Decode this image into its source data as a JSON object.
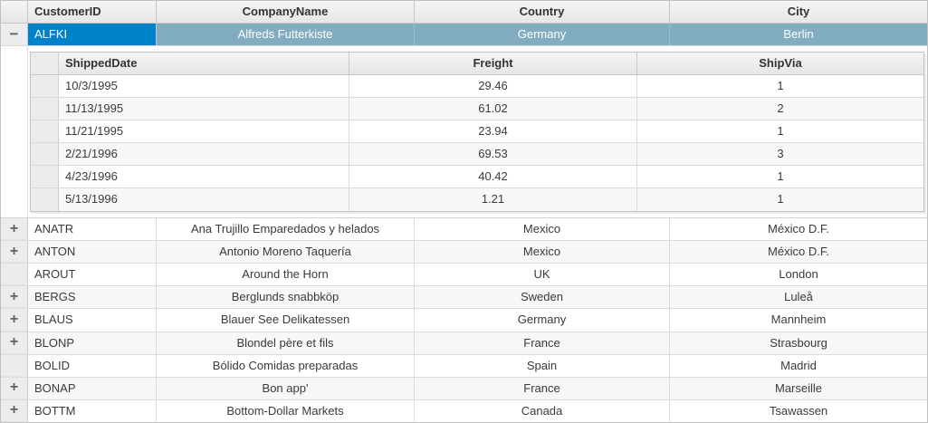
{
  "grid": {
    "columns": [
      "CustomerID",
      "CompanyName",
      "Country",
      "City"
    ],
    "detail_columns": [
      "ShippedDate",
      "Freight",
      "ShipVia"
    ],
    "rows": [
      {
        "customer_id": "ALFKI",
        "company_name": "Alfreds Futterkiste",
        "country": "Germany",
        "city": "Berlin",
        "expander": "−",
        "selected": true,
        "orders": [
          {
            "shipped_date": "10/3/1995",
            "freight": "29.46",
            "ship_via": "1"
          },
          {
            "shipped_date": "11/13/1995",
            "freight": "61.02",
            "ship_via": "2"
          },
          {
            "shipped_date": "11/21/1995",
            "freight": "23.94",
            "ship_via": "1"
          },
          {
            "shipped_date": "2/21/1996",
            "freight": "69.53",
            "ship_via": "3"
          },
          {
            "shipped_date": "4/23/1996",
            "freight": "40.42",
            "ship_via": "1"
          },
          {
            "shipped_date": "5/13/1996",
            "freight": "1.21",
            "ship_via": "1"
          }
        ]
      },
      {
        "customer_id": "ANATR",
        "company_name": "Ana Trujillo Emparedados y helados",
        "country": "Mexico",
        "city": "México D.F.",
        "expander": "+"
      },
      {
        "customer_id": "ANTON",
        "company_name": "Antonio Moreno Taquería",
        "country": "Mexico",
        "city": "México D.F.",
        "expander": "+"
      },
      {
        "customer_id": "AROUT",
        "company_name": "Around the Horn",
        "country": "UK",
        "city": "London",
        "expander": ""
      },
      {
        "customer_id": "BERGS",
        "company_name": "Berglunds snabbköp",
        "country": "Sweden",
        "city": "Luleå",
        "expander": "+"
      },
      {
        "customer_id": "BLAUS",
        "company_name": "Blauer See Delikatessen",
        "country": "Germany",
        "city": "Mannheim",
        "expander": "+"
      },
      {
        "customer_id": "BLONP",
        "company_name": "Blondel père et fils",
        "country": "France",
        "city": "Strasbourg",
        "expander": "+"
      },
      {
        "customer_id": "BOLID",
        "company_name": "Bólido Comidas preparadas",
        "country": "Spain",
        "city": "Madrid",
        "expander": ""
      },
      {
        "customer_id": "BONAP",
        "company_name": "Bon app'",
        "country": "France",
        "city": "Marseille",
        "expander": "+"
      },
      {
        "customer_id": "BOTTM",
        "company_name": "Bottom-Dollar Markets",
        "country": "Canada",
        "city": "Tsawassen",
        "expander": "+"
      }
    ],
    "colors": {
      "selected_key_cell": "#0082c8",
      "selected_row": "#82adc0",
      "header_bg": "#ececec",
      "alt_row_bg": "#f7f7f7"
    }
  }
}
